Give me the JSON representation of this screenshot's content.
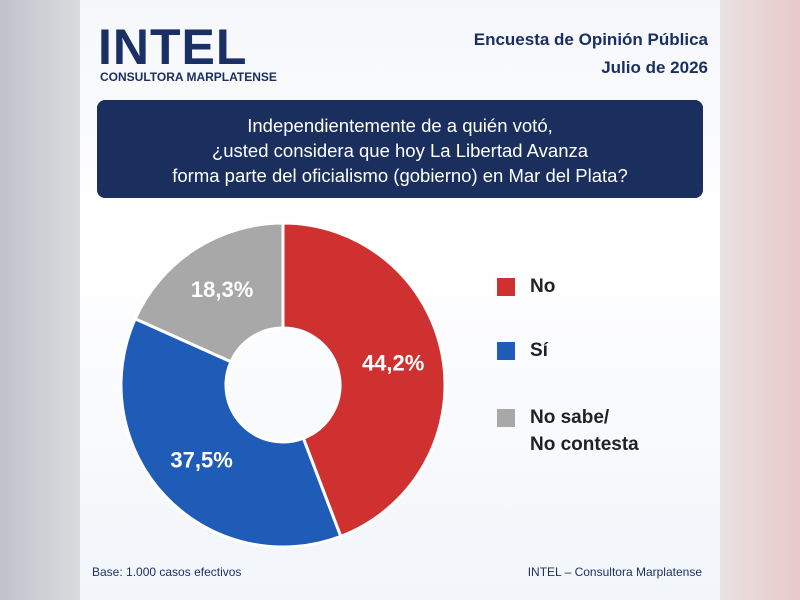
{
  "header": {
    "brand": "INTEL",
    "brand_subtitle": "CONSULTORA MARPLATENSE",
    "survey": "Encuesta de Opinión Pública",
    "date": "Julio de 2026"
  },
  "chart_data": {
    "type": "pie",
    "title": "Independientemente de a quién votó,\n¿usted considera que hoy La Libertad Avanza\nforma parte del oficialismo (gobierno) en Mar del Plata?",
    "categories": [
      "No",
      "Sí",
      "No sabe/\nNo contesta"
    ],
    "values": [
      44.2,
      37.5,
      18.3
    ],
    "value_labels": [
      "44,2%",
      "37,5%",
      "18,3%"
    ],
    "colors": [
      "#cf3131",
      "#1f5cb8",
      "#a8a8a8"
    ]
  },
  "footer": {
    "base": "Base: 1.000 casos efectivos",
    "source": "INTEL – Consultora Marplatense"
  }
}
